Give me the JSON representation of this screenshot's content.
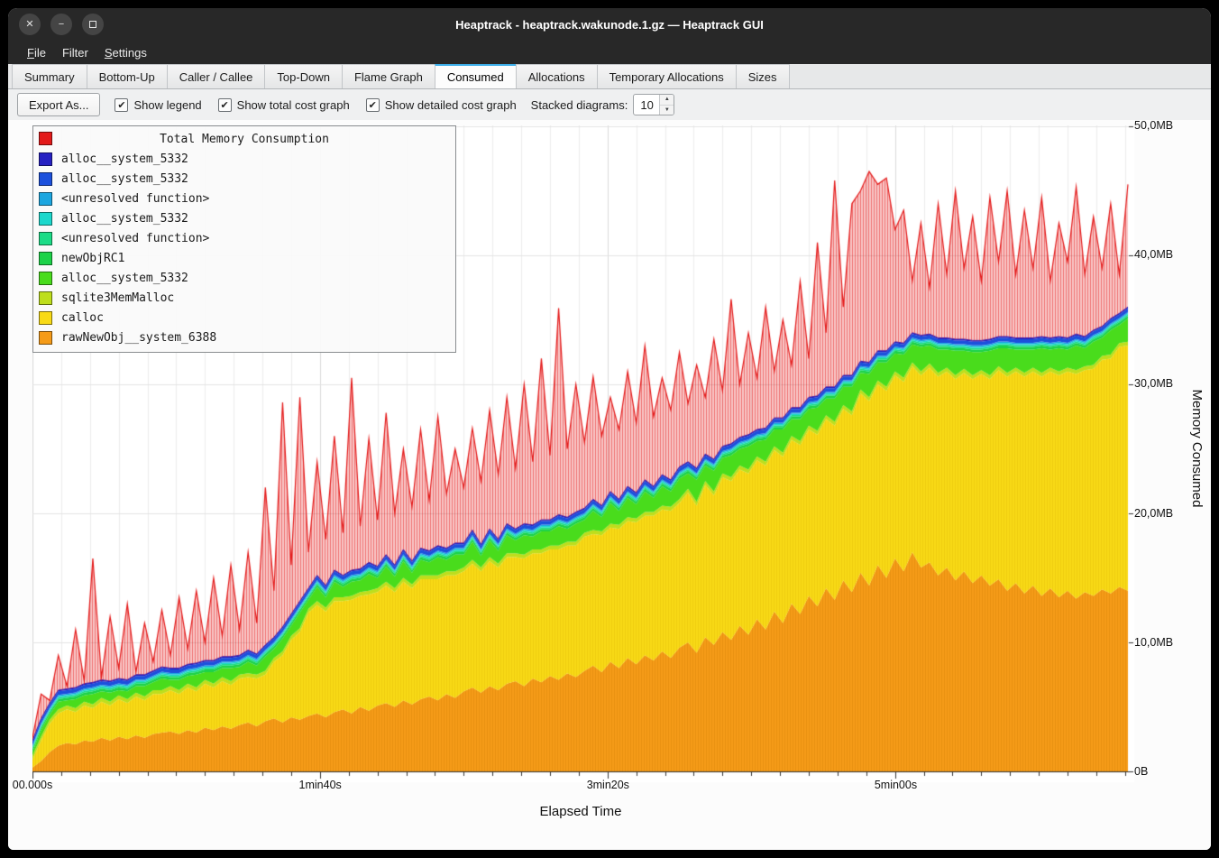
{
  "window": {
    "title": "Heaptrack - heaptrack.wakunode.1.gz — Heaptrack GUI"
  },
  "window_controls": [
    {
      "name": "close",
      "glyph": "✕"
    },
    {
      "name": "minimize",
      "glyph": "−"
    },
    {
      "name": "maximize",
      "glyph": ""
    }
  ],
  "menu": {
    "items": [
      {
        "label": "File",
        "accel": 0
      },
      {
        "label": "Filter",
        "accel": null
      },
      {
        "label": "Settings",
        "accel": 0
      }
    ]
  },
  "tabs": {
    "active": "Consumed",
    "items": [
      "Summary",
      "Bottom-Up",
      "Caller / Callee",
      "Top-Down",
      "Flame Graph",
      "Consumed",
      "Allocations",
      "Temporary Allocations",
      "Sizes"
    ]
  },
  "toolbar": {
    "export_label": "Export As...",
    "check_glyph": "✔",
    "spin_up_glyph": "▲",
    "spin_down_glyph": "▼",
    "checkboxes": [
      {
        "label": "Show legend",
        "checked": true
      },
      {
        "label": "Show total cost graph",
        "checked": true
      },
      {
        "label": "Show detailed cost graph",
        "checked": true
      }
    ],
    "stacked_label": "Stacked diagrams:",
    "stacked_value": "10"
  },
  "legend": {
    "title": "Total Memory Consumption",
    "title_color": "#e31a1a",
    "items": [
      {
        "label": "alloc__system_5332",
        "color": "#2621c2"
      },
      {
        "label": "alloc__system_5332",
        "color": "#1c50dc"
      },
      {
        "label": "<unresolved function>",
        "color": "#1ca6e0"
      },
      {
        "label": "alloc__system_5332",
        "color": "#1cd8cc"
      },
      {
        "label": "<unresolved function>",
        "color": "#1cdc87"
      },
      {
        "label": "newObjRC1",
        "color": "#1cd248"
      },
      {
        "label": "alloc__system_5332",
        "color": "#49dc1c"
      },
      {
        "label": "sqlite3MemMalloc",
        "color": "#bede1c"
      },
      {
        "label": "calloc",
        "color": "#f8da16"
      },
      {
        "label": "rawNewObj__system_6388",
        "color": "#f59b18"
      }
    ]
  },
  "axes": {
    "y_ticks": [
      "0B",
      "10,0MB",
      "20,0MB",
      "30,0MB",
      "40,0MB",
      "50,0MB"
    ],
    "y_label": "Memory Consumed",
    "x_ticks": [
      {
        "label": "00.000s",
        "t": 0
      },
      {
        "label": "1min40s",
        "t": 100
      },
      {
        "label": "3min20s",
        "t": 200
      },
      {
        "label": "5min00s",
        "t": 300
      }
    ],
    "x_label": "Elapsed Time"
  },
  "chart_data": {
    "type": "area",
    "stacked": true,
    "title": "Total Memory Consumption",
    "xlabel": "Elapsed Time",
    "ylabel": "Memory Consumed",
    "x_unit": "seconds",
    "y_unit": "MB",
    "ylim": [
      0,
      50
    ],
    "x": {
      "start": 0,
      "step": 3,
      "count": 128
    },
    "grid": {
      "x_minor": 10,
      "y_major": 10
    },
    "series": [
      {
        "name": "rawNewObj__system_6388",
        "color": "#f59b18",
        "hatch": "#c77700",
        "values": [
          0.3,
          0.8,
          1.5,
          2.0,
          2.2,
          2.1,
          2.4,
          2.3,
          2.6,
          2.4,
          2.7,
          2.5,
          2.8,
          2.6,
          2.9,
          3.0,
          3.1,
          2.9,
          3.2,
          3.0,
          3.4,
          3.2,
          3.5,
          3.3,
          3.6,
          3.8,
          3.5,
          3.9,
          4.1,
          3.8,
          4.2,
          4.0,
          4.3,
          4.5,
          4.2,
          4.6,
          4.8,
          4.5,
          5.0,
          4.7,
          5.1,
          5.3,
          5.0,
          5.5,
          5.2,
          5.6,
          5.8,
          5.5,
          6.0,
          5.7,
          6.2,
          6.5,
          6.1,
          6.6,
          6.3,
          6.8,
          7.0,
          6.6,
          7.2,
          6.9,
          7.4,
          7.1,
          7.6,
          7.3,
          7.8,
          8.2,
          7.7,
          8.5,
          8.0,
          8.8,
          8.3,
          9.0,
          8.6,
          9.3,
          8.8,
          9.6,
          10.0,
          9.2,
          10.4,
          9.8,
          10.8,
          10.2,
          11.3,
          10.6,
          11.8,
          11.0,
          12.4,
          11.5,
          13.0,
          12.2,
          13.6,
          12.8,
          14.2,
          13.3,
          14.8,
          13.9,
          15.4,
          14.4,
          16.0,
          15.0,
          16.5,
          15.5,
          17.0,
          15.8,
          16.2,
          15.2,
          15.8,
          14.8,
          15.5,
          14.6,
          15.2,
          14.4,
          14.9,
          14.0,
          14.6,
          13.8,
          14.4,
          13.6,
          14.2,
          13.5,
          14.0,
          13.4,
          13.9,
          13.6,
          14.1,
          13.8,
          14.3,
          14.0
        ]
      },
      {
        "name": "calloc",
        "color": "#f8da16",
        "hatch": "#d8ae00",
        "values": [
          0.6,
          1.6,
          2.2,
          2.5,
          2.6,
          2.5,
          2.7,
          2.6,
          2.8,
          2.7,
          2.9,
          2.8,
          3.0,
          2.9,
          3.1,
          3.0,
          3.2,
          3.1,
          3.3,
          3.2,
          3.4,
          3.3,
          3.5,
          3.4,
          3.6,
          3.5,
          3.7,
          3.6,
          4.4,
          5.2,
          6.0,
          6.8,
          8.0,
          8.4,
          8.2,
          8.6,
          8.4,
          8.8,
          8.6,
          9.0,
          8.8,
          9.1,
          8.9,
          9.2,
          9.0,
          9.3,
          9.1,
          9.4,
          9.2,
          9.5,
          9.3,
          9.6,
          9.4,
          9.7,
          9.5,
          9.8,
          9.6,
          9.9,
          9.7,
          10.0,
          9.8,
          10.1,
          9.9,
          10.2,
          10.4,
          10.2,
          10.6,
          10.4,
          10.8,
          10.6,
          11.0,
          10.8,
          11.2,
          11.0,
          11.4,
          11.2,
          11.6,
          11.4,
          11.8,
          11.6,
          12.0,
          12.3,
          12.1,
          12.5,
          12.3,
          12.7,
          12.5,
          12.9,
          12.7,
          13.1,
          12.9,
          13.3,
          13.1,
          13.5,
          13.3,
          13.7,
          13.9,
          14.3,
          14.0,
          14.5,
          14.2,
          14.7,
          14.4,
          14.9,
          15.1,
          15.4,
          15.2,
          15.6,
          15.4,
          15.8,
          15.6,
          16.0,
          16.2,
          16.6,
          16.4,
          16.8,
          16.6,
          17.0,
          16.8,
          17.2,
          17.0,
          17.4,
          17.2,
          17.6,
          17.8,
          18.2,
          18.6,
          19.0
        ]
      },
      {
        "name": "sqlite3MemMalloc",
        "color": "#bede1c",
        "value": 0.3
      },
      {
        "name": "alloc__system_5332",
        "color": "#49dc1c",
        "values": [
          0.3,
          0.5,
          0.4,
          0.6,
          0.4,
          0.7,
          0.5,
          0.8,
          0.5,
          0.7,
          0.4,
          0.6,
          0.5,
          0.8,
          0.6,
          0.9,
          0.5,
          0.8,
          0.6,
          1.0,
          0.6,
          0.9,
          0.7,
          1.0,
          0.6,
          0.9,
          0.7,
          1.1,
          0.7,
          1.0,
          0.8,
          1.2,
          0.7,
          1.1,
          0.8,
          1.2,
          0.8,
          1.1,
          0.9,
          1.3,
          0.8,
          1.2,
          0.9,
          1.3,
          0.9,
          1.2,
          1.0,
          1.4,
          0.9,
          1.3,
          1.0,
          1.4,
          0.9,
          1.3,
          1.0,
          1.4,
          1.0,
          1.5,
          1.0,
          1.4,
          1.1,
          1.5,
          1.0,
          1.4,
          1.0,
          1.5,
          1.1,
          1.6,
          1.1,
          1.5,
          1.1,
          1.6,
          1.1,
          1.5,
          1.2,
          1.6,
          1.2,
          1.7,
          1.2,
          1.6,
          1.2,
          1.7,
          1.3,
          1.8,
          1.2,
          1.7,
          1.3,
          1.8,
          1.3,
          1.7,
          1.3,
          1.8,
          1.3,
          1.8,
          1.4,
          1.9,
          1.3,
          1.8,
          1.4,
          1.9,
          1.4,
          1.8,
          1.4,
          1.9,
          1.4,
          1.8,
          1.4,
          1.9,
          1.4,
          1.8,
          1.4,
          1.9,
          1.4,
          1.9,
          1.4,
          1.8,
          1.4,
          1.9,
          1.4,
          1.8,
          1.4,
          1.9,
          1.4,
          1.8,
          1.4,
          1.9,
          1.4,
          1.8
        ]
      },
      {
        "name": "newObjRC1",
        "color": "#1cd248",
        "value": 0.2
      },
      {
        "name": "<unresolved function>",
        "color": "#1cdc87",
        "value": 0.12
      },
      {
        "name": "alloc__system_5332",
        "color": "#1cd8cc",
        "value": 0.1
      },
      {
        "name": "<unresolved function>",
        "color": "#1ca6e0",
        "value": 0.1
      },
      {
        "name": "alloc__system_5332",
        "color": "#1c50dc",
        "value": 0.28
      },
      {
        "name": "alloc__system_5332",
        "color": "#2621c2",
        "value": 0.1
      }
    ],
    "total": {
      "name": "Total Memory Consumption",
      "color": "#e31a1a",
      "values": [
        2.5,
        6.0,
        4.5,
        9.0,
        5.5,
        11.0,
        6.5,
        16.5,
        7.0,
        12.0,
        8.0,
        13.0,
        7.5,
        11.5,
        8.5,
        12.5,
        9.0,
        13.5,
        9.5,
        14.0,
        10.0,
        15.0,
        10.5,
        16.0,
        11.0,
        17.0,
        11.5,
        22.0,
        14.0,
        28.6,
        16.0,
        29.0,
        17.0,
        24.0,
        18.0,
        26.0,
        18.5,
        30.5,
        19.0,
        25.8,
        19.5,
        27.8,
        20.0,
        25.0,
        20.5,
        26.5,
        21.0,
        27.5,
        21.5,
        25.0,
        22.0,
        26.6,
        22.5,
        28.0,
        23.0,
        29.0,
        23.5,
        30.0,
        24.0,
        32.0,
        24.5,
        35.9,
        25.0,
        30.0,
        25.5,
        30.6,
        26.0,
        29.0,
        26.5,
        31.0,
        27.0,
        33.0,
        27.5,
        30.5,
        28.0,
        32.5,
        28.5,
        31.5,
        29.0,
        33.5,
        29.5,
        36.6,
        30.0,
        34.0,
        30.5,
        36.0,
        31.0,
        35.0,
        31.5,
        38.0,
        32.0,
        41.0,
        34.0,
        45.8,
        36.0,
        44.0,
        45.0,
        46.5,
        45.5,
        46.0,
        42.0,
        43.5,
        38.0,
        42.5,
        37.5,
        44.0,
        38.5,
        45.0,
        39.0,
        43.0,
        38.0,
        44.5,
        39.5,
        45.0,
        38.5,
        43.5,
        39.0,
        44.5,
        38.0,
        42.5,
        39.5,
        45.3,
        38.5,
        43.0,
        39.0,
        44.0,
        38.5,
        45.5
      ]
    }
  }
}
